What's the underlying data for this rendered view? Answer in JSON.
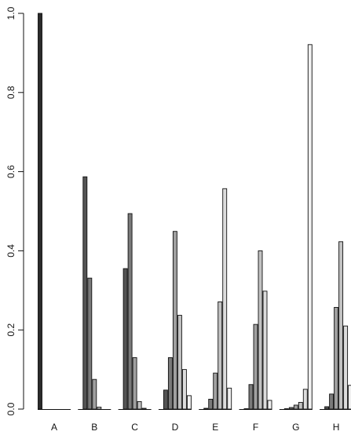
{
  "chart_data": {
    "type": "bar",
    "categories": [
      "A",
      "B",
      "C",
      "D",
      "E",
      "F",
      "G",
      "H"
    ],
    "ylim": [
      0,
      1.0
    ],
    "yticks": [
      "0.0",
      "0.2",
      "0.4",
      "0.6",
      "0.8",
      "1.0"
    ],
    "grid": false,
    "bar_colors": [
      "#2b2b2b",
      "#545454",
      "#7a7a7a",
      "#a0a0a0",
      "#c2c2c2",
      "#dcdcdc",
      "#f0f0f0"
    ],
    "groups": [
      {
        "category": "A",
        "values": [
          1.0,
          0.0,
          0.0,
          0.0,
          0.0,
          0.0,
          0.0
        ]
      },
      {
        "category": "B",
        "values": [
          0.0,
          0.587,
          0.331,
          0.075,
          0.005,
          0.0,
          0.0
        ]
      },
      {
        "category": "C",
        "values": [
          0.0,
          0.355,
          0.494,
          0.13,
          0.019,
          0.002,
          0.0
        ]
      },
      {
        "category": "D",
        "values": [
          0.0,
          0.048,
          0.13,
          0.449,
          0.237,
          0.1,
          0.034
        ]
      },
      {
        "category": "E",
        "values": [
          0.0,
          0.002,
          0.025,
          0.091,
          0.271,
          0.557,
          0.053
        ]
      },
      {
        "category": "F",
        "values": [
          0.0,
          0.001,
          0.062,
          0.214,
          0.4,
          0.298,
          0.022
        ]
      },
      {
        "category": "G",
        "values": [
          0.0,
          0.001,
          0.004,
          0.01,
          0.017,
          0.05,
          0.921
        ]
      },
      {
        "category": "H",
        "values": [
          0.0,
          0.006,
          0.038,
          0.257,
          0.423,
          0.21,
          0.06
        ]
      }
    ]
  }
}
